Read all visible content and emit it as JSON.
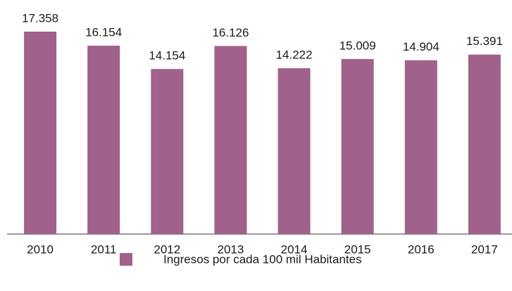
{
  "chart_data": {
    "type": "bar",
    "categories": [
      "2010",
      "2011",
      "2012",
      "2013",
      "2014",
      "2015",
      "2016",
      "2017"
    ],
    "series": [
      {
        "name": "Ingresos por cada 100 mil Habitantes",
        "color": "#a0628a",
        "values": [
          17.358,
          16.154,
          14.154,
          16.126,
          14.222,
          15.009,
          14.904,
          15.391
        ]
      }
    ]
  }
}
